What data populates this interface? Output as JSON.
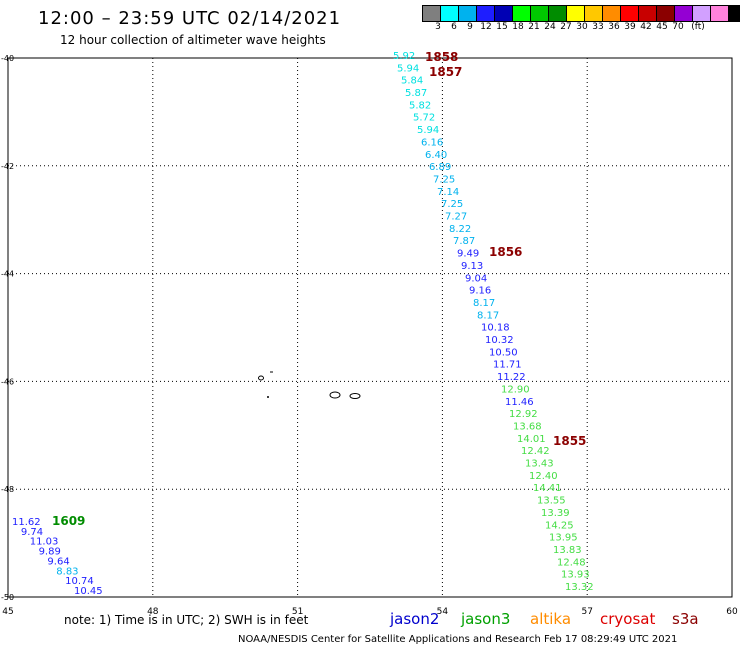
{
  "header": {
    "title": "12:00 – 23:59 UTC 02/14/2021",
    "subtitle": "12 hour collection of altimeter wave heights"
  },
  "color_scale": {
    "colors": [
      "#7f7f7f",
      "#00ffff",
      "#00b2ee",
      "#1e1eff",
      "#0000b4",
      "#00ff00",
      "#00c800",
      "#008c00",
      "#ffff00",
      "#ffc800",
      "#ff8c00",
      "#ff0000",
      "#c80000",
      "#8b0000",
      "#9400d3",
      "#d2a0ff",
      "#ff82dc",
      "#000000"
    ],
    "labels": [
      "3",
      "6",
      "9",
      "12",
      "15",
      "18",
      "21",
      "24",
      "27",
      "30",
      "33",
      "36",
      "39",
      "42",
      "45",
      "70",
      "(ft)"
    ]
  },
  "map": {
    "x_ticks": [
      "45",
      "48",
      "51",
      "54",
      "57",
      "60"
    ],
    "y_ticks": [
      "-40",
      "-42",
      "-44",
      "-46",
      "-48",
      "-50"
    ],
    "lon_range": [
      45,
      60
    ],
    "lat_range": [
      -40,
      -50
    ]
  },
  "tracks": {
    "right": [
      {
        "t": "5.92",
        "c": "#00e0e0"
      },
      {
        "t": "5.94",
        "c": "#00e0e0"
      },
      {
        "t": "5.84",
        "c": "#00e0e0"
      },
      {
        "t": "5.87",
        "c": "#00e0e0"
      },
      {
        "t": "5.82",
        "c": "#00e0e0"
      },
      {
        "t": "5.72",
        "c": "#00e0e0"
      },
      {
        "t": "5.94",
        "c": "#00e0e0"
      },
      {
        "t": "6.16",
        "c": "#00b2ee"
      },
      {
        "t": "6.40",
        "c": "#00b2ee"
      },
      {
        "t": "6.89",
        "c": "#00b2ee"
      },
      {
        "t": "7.25",
        "c": "#00b2ee"
      },
      {
        "t": "7.14",
        "c": "#00b2ee"
      },
      {
        "t": "7.25",
        "c": "#00b2ee"
      },
      {
        "t": "7.27",
        "c": "#00b2ee"
      },
      {
        "t": "8.22",
        "c": "#00b2ee"
      },
      {
        "t": "7.87",
        "c": "#00b2ee"
      },
      {
        "t": "9.49",
        "c": "#1e1eff"
      },
      {
        "t": "9.13",
        "c": "#1e1eff"
      },
      {
        "t": "9.04",
        "c": "#1e1eff"
      },
      {
        "t": "9.16",
        "c": "#1e1eff"
      },
      {
        "t": "8.17",
        "c": "#00b2ee"
      },
      {
        "t": "8.17",
        "c": "#00b2ee"
      },
      {
        "t": "10.18",
        "c": "#1e1eff"
      },
      {
        "t": "10.32",
        "c": "#1e1eff"
      },
      {
        "t": "10.50",
        "c": "#1e1eff"
      },
      {
        "t": "11.71",
        "c": "#1e1eff"
      },
      {
        "t": "11.22",
        "c": "#1e1eff"
      },
      {
        "t": "12.90",
        "c": "#44dd44"
      },
      {
        "t": "11.46",
        "c": "#1e1eff"
      },
      {
        "t": "12.92",
        "c": "#44dd44"
      },
      {
        "t": "13.68",
        "c": "#44dd44"
      },
      {
        "t": "14.01",
        "c": "#44dd44"
      },
      {
        "t": "12.42",
        "c": "#44dd44"
      },
      {
        "t": "13.43",
        "c": "#44dd44"
      },
      {
        "t": "12.40",
        "c": "#44dd44"
      },
      {
        "t": "14.41",
        "c": "#44dd44"
      },
      {
        "t": "13.55",
        "c": "#44dd44"
      },
      {
        "t": "13.39",
        "c": "#44dd44"
      },
      {
        "t": "14.25",
        "c": "#44dd44"
      },
      {
        "t": "13.95",
        "c": "#44dd44"
      },
      {
        "t": "13.83",
        "c": "#44dd44"
      },
      {
        "t": "12.48",
        "c": "#44dd44"
      },
      {
        "t": "13.93",
        "c": "#44dd44"
      },
      {
        "t": "13.32",
        "c": "#44dd44"
      }
    ],
    "left": [
      {
        "t": "11.62",
        "c": "#1e1eff"
      },
      {
        "t": "9.74",
        "c": "#1e1eff"
      },
      {
        "t": "11.03",
        "c": "#1e1eff"
      },
      {
        "t": "9.89",
        "c": "#1e1eff"
      },
      {
        "t": "9.64",
        "c": "#1e1eff"
      },
      {
        "t": "8.83",
        "c": "#00b2ee"
      },
      {
        "t": "10.74",
        "c": "#1e1eff"
      },
      {
        "t": "10.45",
        "c": "#1e1eff"
      }
    ],
    "times": [
      {
        "t": "1858",
        "c": "#8b0000"
      },
      {
        "t": "1857",
        "c": "#8b0000"
      },
      {
        "t": "1856",
        "c": "#8b0000"
      },
      {
        "t": "1855",
        "c": "#8b0000"
      },
      {
        "t": "1609",
        "c": "#008c00"
      }
    ]
  },
  "footer": {
    "note": "note:  1) Time is in UTC;  2) SWH is in feet",
    "satellites": [
      {
        "name": "jason2",
        "c": "#0000cc"
      },
      {
        "name": "jason3",
        "c": "#00a000"
      },
      {
        "name": "altika",
        "c": "#ff8c00"
      },
      {
        "name": "cryosat",
        "c": "#dd0000"
      },
      {
        "name": "s3a",
        "c": "#8b0000"
      }
    ],
    "credit": "NOAA/NESDIS Center for Satellite Applications and Research     Feb 17 08:29:49 UTC 2021"
  }
}
